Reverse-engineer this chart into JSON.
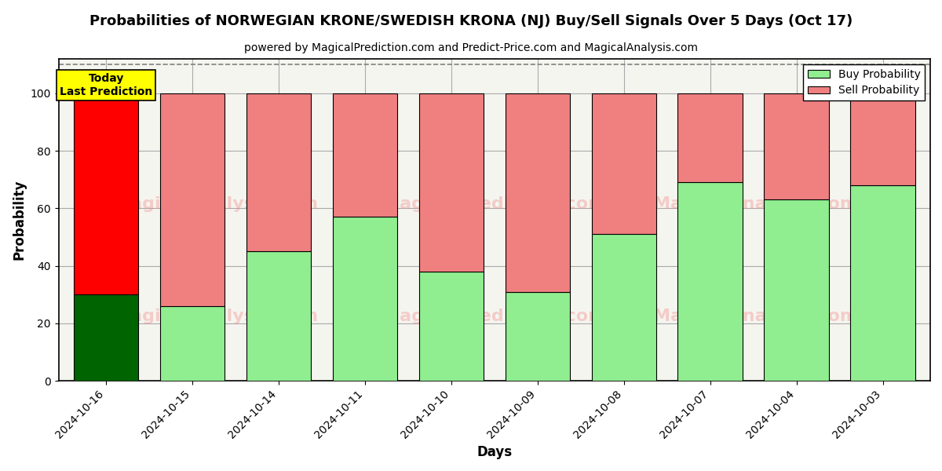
{
  "title": "Probabilities of NORWEGIAN KRONE/SWEDISH KRONA (NJ) Buy/Sell Signals Over 5 Days (Oct 17)",
  "subtitle": "powered by MagicalPrediction.com and Predict-Price.com and MagicalAnalysis.com",
  "xlabel": "Days",
  "ylabel": "Probability",
  "categories": [
    "2024-10-16",
    "2024-10-15",
    "2024-10-14",
    "2024-10-11",
    "2024-10-10",
    "2024-10-09",
    "2024-10-08",
    "2024-10-07",
    "2024-10-04",
    "2024-10-03"
  ],
  "buy_values": [
    30,
    26,
    45,
    57,
    38,
    31,
    51,
    69,
    63,
    68
  ],
  "sell_values": [
    70,
    74,
    55,
    43,
    62,
    69,
    49,
    31,
    37,
    32
  ],
  "today_buy_color": "#006400",
  "today_sell_color": "#ff0000",
  "buy_color": "#90EE90",
  "sell_color": "#F08080",
  "today_label_bg": "#ffff00",
  "today_index": 0,
  "ylim": [
    0,
    112
  ],
  "yticks": [
    0,
    20,
    40,
    60,
    80,
    100
  ],
  "grid_color": "#aaaaaa",
  "legend_buy_label": "Buy Probability",
  "legend_sell_label": "Sell Probability",
  "today_annotation": "Today\nLast Prediction",
  "dashed_line_y": 110,
  "plot_bg_color": "#f5f5f0",
  "fig_bg_color": "#ffffff",
  "watermark_color": "#F08080",
  "watermark_alpha": 0.35
}
